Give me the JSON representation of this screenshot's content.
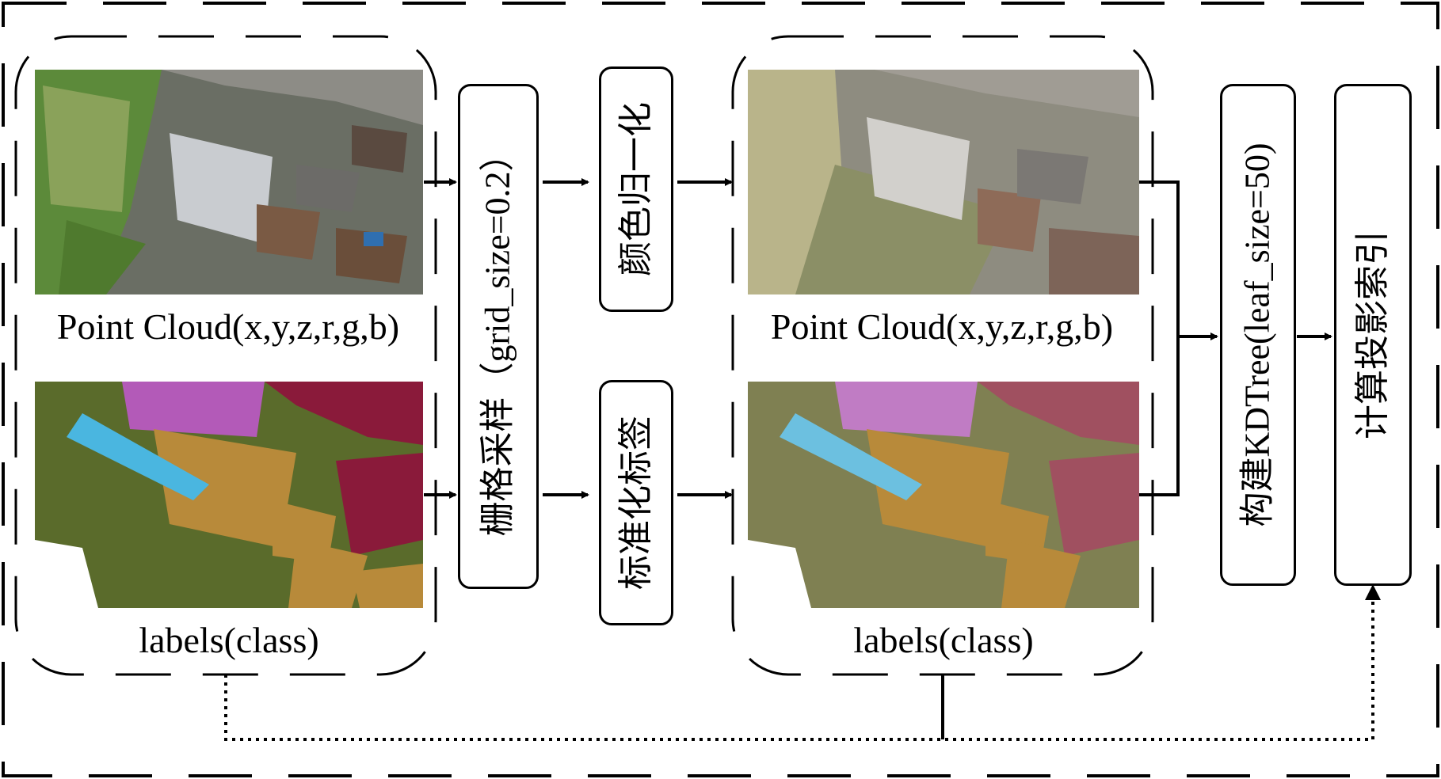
{
  "left_group": {
    "point_cloud_label": "Point Cloud(x,y,z,r,g,b)",
    "labels_label": "labels(class)"
  },
  "steps": {
    "grid_sampling": "栅格采样（grid_size=0.2）",
    "color_normalize": "颜色归一化",
    "label_standardize": "标准化标签",
    "build_kdtree": "构建KDTree(leaf_size=50)",
    "compute_projection_index": "计算投影索引"
  },
  "right_group": {
    "point_cloud_label": "Point Cloud(x,y,z,r,g,b)",
    "labels_label": "labels(class)"
  },
  "icons": {
    "arrow": "arrow-icon"
  }
}
